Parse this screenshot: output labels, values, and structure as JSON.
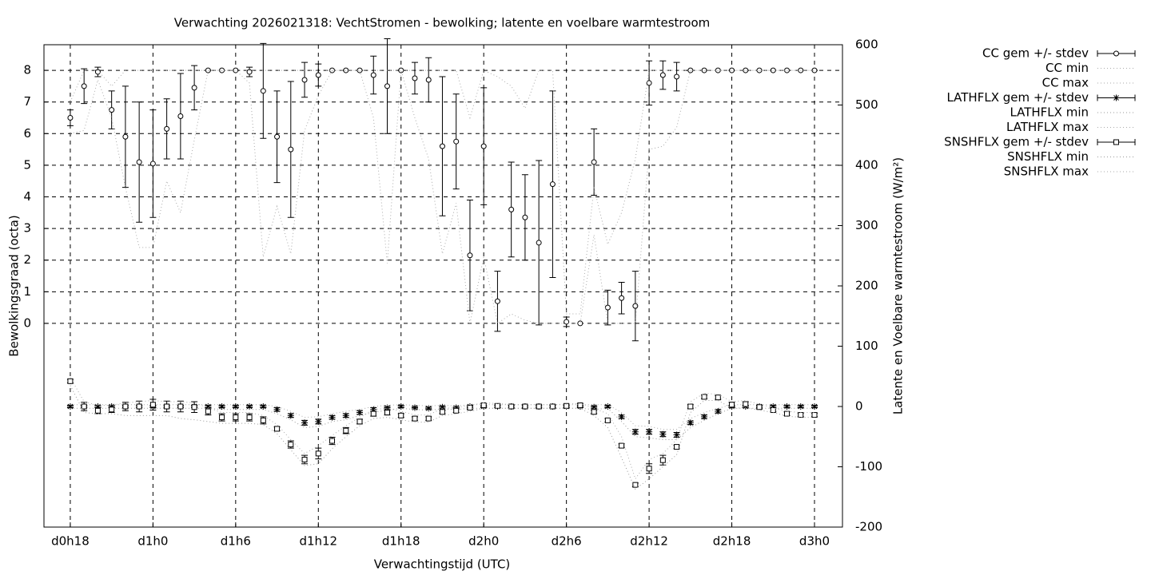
{
  "chart_data": {
    "type": "errorbar",
    "title": "Verwachting 2026021318: VechtStromen - bewolking; latente en voelbare warmtestroom",
    "xlabel": "Verwachtingstijd (UTC)",
    "ylabel": "Bewolkingsgraad (octa)",
    "y2label": "Latente en Voelbare warmtestroom (W/m²)",
    "grid": true,
    "x": [
      18,
      19,
      20,
      21,
      22,
      23,
      24,
      25,
      26,
      27,
      28,
      29,
      30,
      31,
      32,
      33,
      34,
      35,
      36,
      37,
      38,
      39,
      40,
      41,
      42,
      43,
      44,
      45,
      46,
      47,
      48,
      49,
      50,
      51,
      52,
      53,
      54,
      55,
      56,
      57,
      58,
      59,
      60,
      61,
      62,
      63,
      64,
      65,
      66,
      67,
      68,
      69,
      70,
      71,
      72
    ],
    "xlim": [
      16.09,
      74.03
    ],
    "xticks": [
      {
        "value": 18,
        "label": "d0h18"
      },
      {
        "value": 24,
        "label": "d1h0"
      },
      {
        "value": 30,
        "label": "d1h6"
      },
      {
        "value": 36,
        "label": "d1h12"
      },
      {
        "value": 42,
        "label": "d1h18"
      },
      {
        "value": 48,
        "label": "d2h0"
      },
      {
        "value": 54,
        "label": "d2h6"
      },
      {
        "value": 60,
        "label": "d2h12"
      },
      {
        "value": 66,
        "label": "d2h18"
      },
      {
        "value": 72,
        "label": "d3h0"
      }
    ],
    "ylim": [
      -6.44,
      8.81
    ],
    "yticks": [
      0,
      1,
      2,
      3,
      4,
      5,
      6,
      7,
      8
    ],
    "y2lim": [
      -200,
      600
    ],
    "y2ticks": [
      -200,
      -100,
      0,
      100,
      200,
      300,
      400,
      500,
      600
    ],
    "series": [
      {
        "name": "CC gem +/- stdev",
        "style": "errorbars",
        "marker": "circle",
        "color": "#000000",
        "axis": "y",
        "values": [
          6.5,
          7.5,
          7.95,
          6.75,
          5.9,
          5.1,
          5.05,
          6.15,
          6.55,
          7.45,
          8,
          8,
          8,
          7.95,
          7.35,
          5.9,
          5.5,
          7.7,
          7.85,
          8,
          8,
          8,
          7.85,
          7.5,
          8,
          7.75,
          7.7,
          5.6,
          5.75,
          2.15,
          5.6,
          0.7,
          3.6,
          3.35,
          2.55,
          4.4,
          0.05,
          0,
          5.1,
          0.5,
          0.8,
          0.55,
          7.6,
          7.85,
          7.8,
          8,
          8,
          8,
          8,
          8,
          8,
          8,
          8,
          8,
          8
        ],
        "errors": [
          0.25,
          0.55,
          0.15,
          0.6,
          1.6,
          1.9,
          1.7,
          0.95,
          1.35,
          0.7,
          0,
          0,
          0,
          0.15,
          1.5,
          1.45,
          2.15,
          0.55,
          0.35,
          0,
          0,
          0,
          0.6,
          1.5,
          0,
          0.5,
          0.7,
          2.2,
          1.5,
          1.75,
          1.85,
          0.95,
          1.5,
          1.35,
          2.6,
          2.95,
          0.15,
          0,
          1.05,
          0.55,
          0.5,
          1.1,
          0.7,
          0.45,
          0.45,
          0,
          0,
          0,
          0,
          0,
          0,
          0,
          0,
          0,
          0
        ]
      },
      {
        "name": "CC min",
        "style": "dots",
        "color": "#aaaaaa",
        "axis": "y",
        "values": [
          6.0,
          6.1,
          7.7,
          6.5,
          4.3,
          2.4,
          2.4,
          4.5,
          3.5,
          5.8,
          8,
          8,
          8,
          7.6,
          2.1,
          3.7,
          2.2,
          6.1,
          7.2,
          8,
          8,
          8,
          6.5,
          1.9,
          8,
          6.5,
          5.2,
          2.2,
          3.8,
          0,
          2.1,
          0,
          0.3,
          0.1,
          0,
          0,
          0,
          0,
          2.8,
          0,
          0,
          0,
          5.5,
          5.6,
          6.2,
          8,
          8,
          8,
          8,
          8,
          8,
          8,
          8,
          8,
          8
        ]
      },
      {
        "name": "CC max",
        "style": "dots",
        "color": "#aaaaaa",
        "axis": "y",
        "values": [
          7,
          8,
          8,
          7.5,
          8,
          8,
          8,
          8,
          8,
          8,
          8,
          8,
          8,
          8,
          8,
          8,
          8,
          8,
          8,
          8,
          8,
          8,
          8,
          8,
          8,
          8,
          8,
          8,
          8,
          6.5,
          8,
          7.8,
          7.5,
          6.8,
          8,
          8,
          0.3,
          0.3,
          4.3,
          2.5,
          3.5,
          5.2,
          8,
          8,
          8,
          8,
          8,
          8,
          8,
          8,
          8,
          8,
          8,
          8,
          8
        ]
      },
      {
        "name": "LATHFLX gem +/- stdev",
        "style": "errorbars",
        "marker": "asterisk",
        "color": "#000000",
        "axis": "y2",
        "values": [
          0,
          0,
          0,
          0,
          0,
          0,
          0,
          0,
          0,
          0,
          0,
          0,
          0,
          0,
          0,
          -5,
          -15,
          -27,
          -25,
          -18,
          -15,
          -10,
          -5,
          -2,
          0,
          -2,
          -3,
          -1,
          -2,
          0,
          0,
          0,
          0,
          0,
          0,
          0,
          0,
          0,
          -1,
          0,
          -17,
          -42,
          -42,
          -46,
          -47,
          -27,
          -17,
          -8,
          0,
          0,
          0,
          0,
          0,
          0,
          0
        ],
        "errors": [
          2,
          2,
          2,
          2,
          2,
          2,
          2,
          2,
          2,
          2,
          2,
          2,
          2,
          2,
          2,
          3,
          3,
          4,
          4,
          3,
          3,
          3,
          3,
          2,
          2,
          2,
          2,
          2,
          2,
          2,
          2,
          2,
          2,
          2,
          2,
          2,
          2,
          2,
          2,
          2,
          3,
          4,
          4,
          4,
          4,
          3,
          3,
          3,
          2,
          2,
          2,
          2,
          2,
          2,
          2
        ]
      },
      {
        "name": "LATHFLX min",
        "style": "dots",
        "color": "#999999",
        "axis": "y2",
        "values": [
          -3,
          -3,
          -3,
          -3,
          -3,
          -3,
          -3,
          -3,
          -3,
          -3,
          -3,
          -5,
          -5,
          -5,
          -5,
          -12,
          -22,
          -35,
          -33,
          -25,
          -22,
          -15,
          -10,
          -6,
          -3,
          -5,
          -6,
          -4,
          -5,
          -3,
          -3,
          -3,
          -3,
          -3,
          -3,
          -3,
          -3,
          -3,
          -5,
          -3,
          -25,
          -50,
          -52,
          -55,
          -55,
          -35,
          -23,
          -12,
          -3,
          -3,
          -3,
          -3,
          -3,
          -3,
          -3
        ]
      },
      {
        "name": "LATHFLX max",
        "style": "dots",
        "color": "#aaaaaa",
        "axis": "y2",
        "values": [
          3,
          3,
          3,
          3,
          3,
          3,
          3,
          3,
          3,
          3,
          3,
          3,
          3,
          3,
          3,
          0,
          -8,
          -18,
          -17,
          -12,
          -8,
          -5,
          0,
          2,
          3,
          2,
          1,
          2,
          1,
          3,
          3,
          3,
          3,
          3,
          3,
          3,
          3,
          3,
          3,
          3,
          -10,
          -32,
          -33,
          -38,
          -38,
          -20,
          -10,
          -3,
          3,
          3,
          3,
          3,
          3,
          3,
          3
        ]
      },
      {
        "name": "SNSHFLX gem +/- stdev",
        "style": "errorbars",
        "marker": "square",
        "color": "#000000",
        "axis": "y2",
        "values": [
          42,
          0,
          -7,
          -5,
          0,
          0,
          3,
          0,
          0,
          -1,
          -8,
          -18,
          -18,
          -18,
          -23,
          -37,
          -63,
          -88,
          -78,
          -57,
          -40,
          -25,
          -12,
          -10,
          -15,
          -20,
          -20,
          -9,
          -7,
          -2,
          2,
          1,
          0,
          0,
          0,
          0,
          1,
          2,
          -9,
          -23,
          -65,
          -130,
          -103,
          -89,
          -67,
          0,
          16,
          15,
          3,
          4,
          -1,
          -6,
          -12,
          -14,
          -14
        ],
        "errors": [
          3,
          7,
          5,
          5,
          7,
          9,
          9,
          9,
          9,
          9,
          6,
          6,
          6,
          6,
          6,
          3,
          6,
          7,
          9,
          6,
          5,
          4,
          4,
          4,
          3,
          3,
          3,
          3,
          3,
          3,
          3,
          3,
          3,
          3,
          3,
          3,
          3,
          3,
          3,
          3,
          3,
          3,
          8,
          8,
          3,
          3,
          3,
          3,
          4,
          4,
          3,
          3,
          3,
          3,
          3
        ]
      },
      {
        "name": "SNSHFLX min",
        "style": "dots",
        "color": "#999999",
        "axis": "y2",
        "values": [
          35,
          -10,
          -12,
          -12,
          -15,
          -15,
          -15,
          -15,
          -20,
          -22,
          -25,
          -28,
          -28,
          -28,
          -30,
          -45,
          -72,
          -98,
          -95,
          -70,
          -50,
          -32,
          -20,
          -18,
          -22,
          -26,
          -26,
          -15,
          -12,
          -8,
          -3,
          -3,
          -3,
          -3,
          -3,
          -3,
          -3,
          -3,
          -15,
          -35,
          -85,
          -137,
          -120,
          -100,
          -80,
          -10,
          10,
          10,
          -3,
          -2,
          -6,
          -10,
          -16,
          -18,
          -18
        ]
      },
      {
        "name": "SNSHFLX max",
        "style": "dots",
        "color": "#aaaaaa",
        "axis": "y2",
        "values": [
          48,
          8,
          2,
          2,
          6,
          8,
          10,
          8,
          8,
          6,
          -2,
          -10,
          -10,
          -10,
          -15,
          -30,
          -55,
          -78,
          -65,
          -48,
          -32,
          -18,
          -5,
          -3,
          -8,
          -14,
          -14,
          -3,
          -2,
          2,
          6,
          5,
          3,
          3,
          3,
          3,
          4,
          5,
          -3,
          -12,
          -50,
          -120,
          -88,
          -78,
          -55,
          8,
          22,
          20,
          8,
          10,
          4,
          -2,
          -8,
          -10,
          -10
        ]
      }
    ]
  }
}
